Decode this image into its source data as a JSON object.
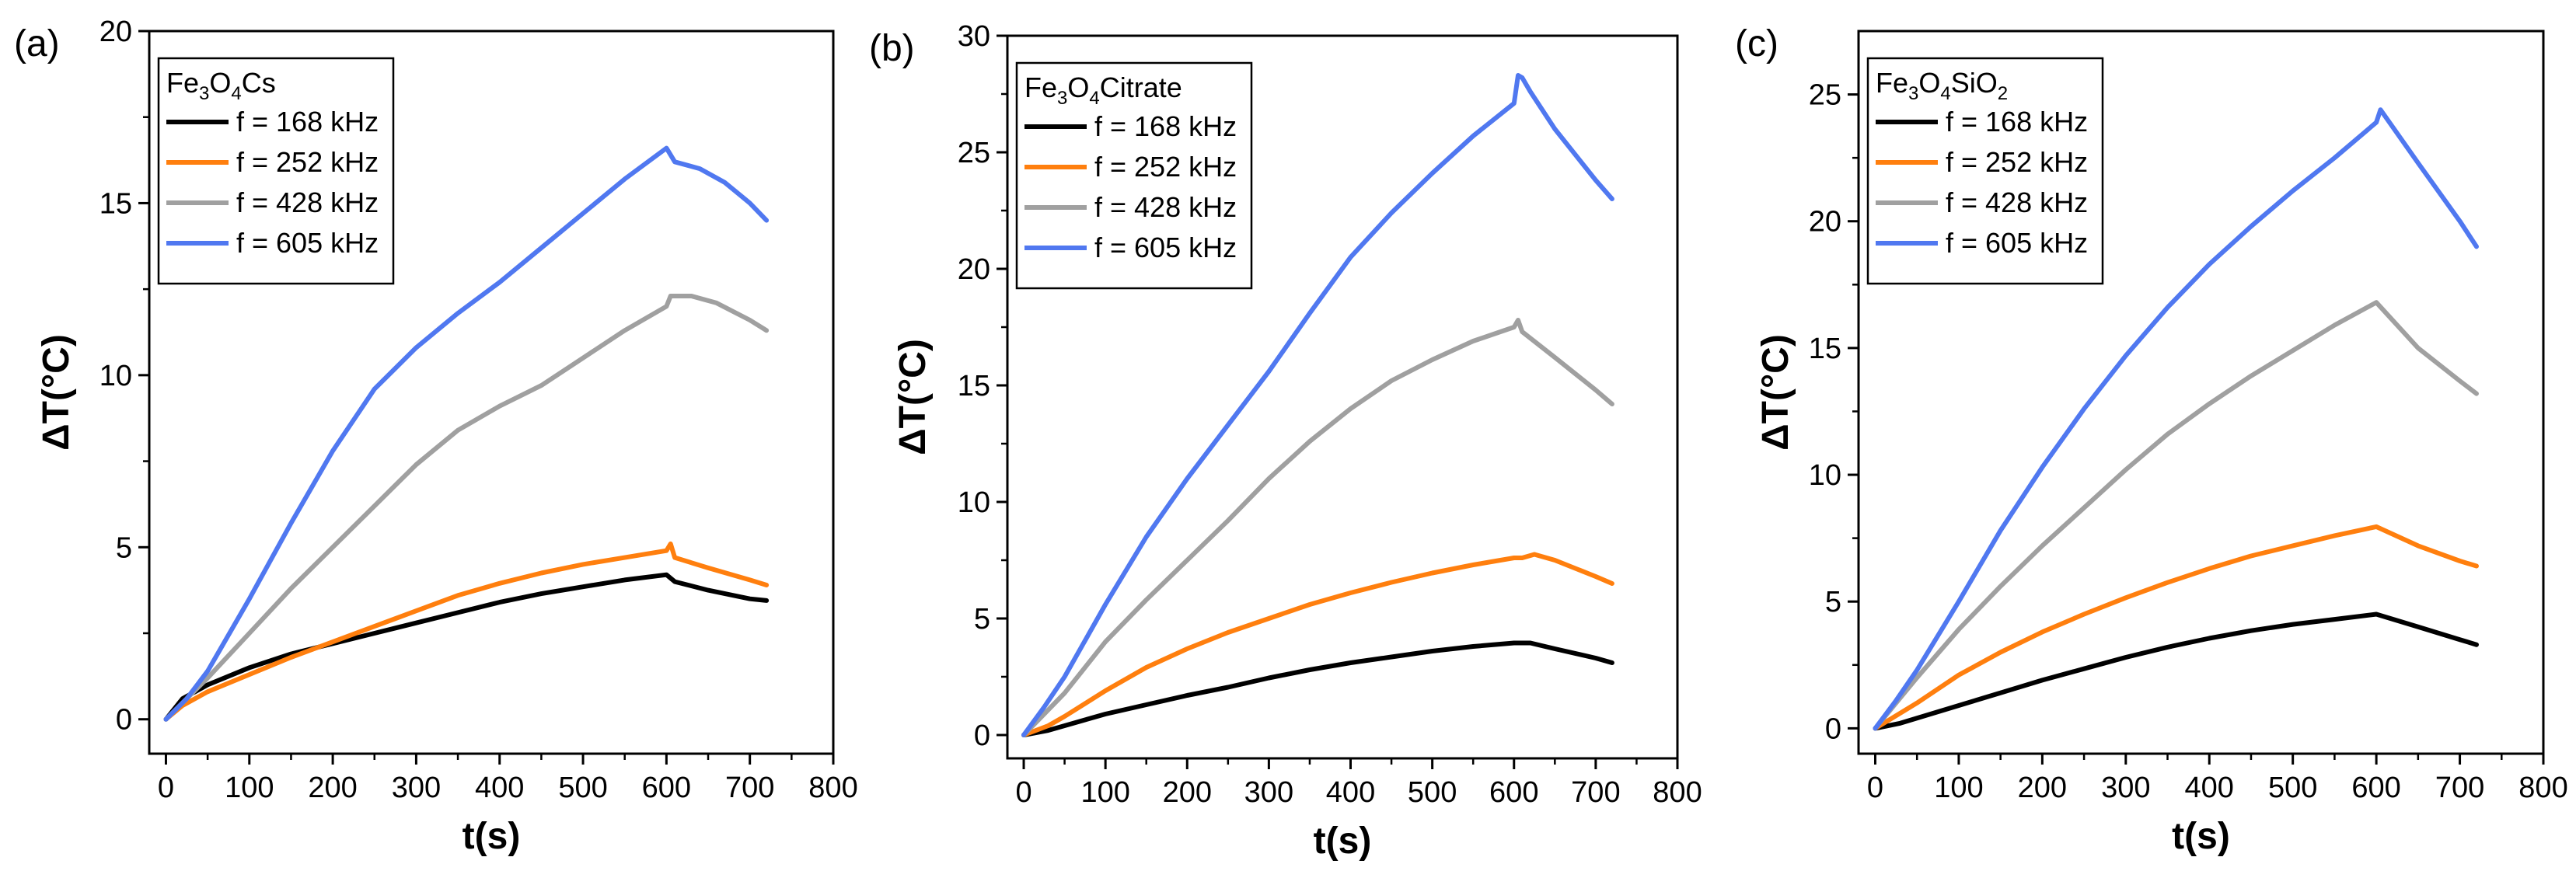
{
  "figure": {
    "legend_location": "upper-left",
    "colors": {
      "f168": "#000000",
      "f252": "#ff7f0e",
      "f428": "#a0a0a0",
      "f605": "#5078f0"
    },
    "panels": [
      {
        "label": "(a)",
        "legend_title": {
          "parts": [
            "Fe",
            "3",
            "O",
            "4",
            "Cs"
          ]
        }
      },
      {
        "label": "(b)",
        "legend_title": {
          "parts": [
            "Fe",
            "3",
            "O",
            "4",
            "Citrate"
          ]
        }
      },
      {
        "label": "(c)",
        "legend_title": {
          "parts": [
            "Fe",
            "3",
            "O",
            "4",
            "SiO",
            "2",
            ""
          ]
        }
      }
    ]
  },
  "chart_data": [
    {
      "type": "line",
      "panel": "(a)",
      "xlabel": "t(s)",
      "ylabel": "ΔT(°C)",
      "xlim": [
        -20,
        800
      ],
      "ylim": [
        -1,
        20
      ],
      "xticks": [
        0,
        100,
        200,
        300,
        400,
        500,
        600,
        700,
        800
      ],
      "xtick_labels": [
        "0",
        "100",
        "200",
        "300",
        "400",
        "500",
        "600",
        "700",
        "800"
      ],
      "yticks": [
        0,
        5,
        10,
        15,
        20
      ],
      "ytick_labels": [
        "0",
        "5",
        "10",
        "15",
        "20"
      ],
      "series": [
        {
          "name": "f = 168 kHz",
          "color": "#000000",
          "x": [
            0,
            20,
            50,
            100,
            150,
            200,
            250,
            300,
            350,
            400,
            450,
            500,
            550,
            600,
            610,
            650,
            700,
            720
          ],
          "y": [
            0,
            0.6,
            1.0,
            1.5,
            1.9,
            2.2,
            2.5,
            2.8,
            3.1,
            3.4,
            3.65,
            3.85,
            4.05,
            4.2,
            4.0,
            3.75,
            3.5,
            3.45
          ]
        },
        {
          "name": "f = 252 kHz",
          "color": "#ff7f0e",
          "x": [
            0,
            20,
            50,
            100,
            150,
            200,
            250,
            300,
            350,
            400,
            450,
            500,
            550,
            600,
            605,
            610,
            650,
            700,
            720
          ],
          "y": [
            0,
            0.4,
            0.8,
            1.3,
            1.8,
            2.25,
            2.7,
            3.15,
            3.6,
            3.95,
            4.25,
            4.5,
            4.7,
            4.9,
            5.1,
            4.7,
            4.4,
            4.05,
            3.9
          ]
        },
        {
          "name": "f = 428 kHz",
          "color": "#a0a0a0",
          "x": [
            0,
            25,
            50,
            100,
            150,
            200,
            250,
            300,
            350,
            400,
            450,
            500,
            550,
            600,
            605,
            630,
            660,
            700,
            720
          ],
          "y": [
            0,
            0.6,
            1.2,
            2.5,
            3.8,
            5.0,
            6.2,
            7.4,
            8.4,
            9.1,
            9.7,
            10.5,
            11.3,
            12.0,
            12.3,
            12.3,
            12.1,
            11.6,
            11.3
          ]
        },
        {
          "name": "f = 605 kHz",
          "color": "#5078f0",
          "x": [
            0,
            25,
            50,
            100,
            150,
            200,
            250,
            300,
            350,
            400,
            450,
            500,
            550,
            600,
            610,
            640,
            670,
            700,
            720
          ],
          "y": [
            0,
            0.6,
            1.4,
            3.5,
            5.7,
            7.8,
            9.6,
            10.8,
            11.8,
            12.7,
            13.7,
            14.7,
            15.7,
            16.6,
            16.2,
            16.0,
            15.6,
            15.0,
            14.5
          ]
        }
      ]
    },
    {
      "type": "line",
      "panel": "(b)",
      "xlabel": "t(s)",
      "ylabel": "ΔT(°C)",
      "xlim": [
        -20,
        800
      ],
      "ylim": [
        -1,
        30
      ],
      "xticks": [
        0,
        100,
        200,
        300,
        400,
        500,
        600,
        700,
        800
      ],
      "xtick_labels": [
        "0",
        "100",
        "200",
        "300",
        "400",
        "500",
        "600",
        "700",
        "800"
      ],
      "yticks": [
        0,
        5,
        10,
        15,
        20,
        25,
        30
      ],
      "ytick_labels": [
        "0",
        "5",
        "10",
        "15",
        "20",
        "25",
        "30"
      ],
      "series": [
        {
          "name": "f = 168 kHz",
          "color": "#000000",
          "x": [
            0,
            30,
            50,
            100,
            150,
            200,
            250,
            300,
            350,
            400,
            450,
            500,
            550,
            600,
            620,
            650,
            700,
            720
          ],
          "y": [
            0,
            0.2,
            0.4,
            0.9,
            1.3,
            1.7,
            2.05,
            2.45,
            2.8,
            3.1,
            3.35,
            3.6,
            3.8,
            3.95,
            3.95,
            3.7,
            3.3,
            3.1
          ]
        },
        {
          "name": "f = 252 kHz",
          "color": "#ff7f0e",
          "x": [
            0,
            30,
            50,
            100,
            150,
            200,
            250,
            300,
            350,
            400,
            450,
            500,
            550,
            600,
            610,
            625,
            650,
            700,
            720
          ],
          "y": [
            0,
            0.4,
            0.8,
            1.9,
            2.9,
            3.7,
            4.4,
            5.0,
            5.6,
            6.1,
            6.55,
            6.95,
            7.3,
            7.6,
            7.6,
            7.75,
            7.5,
            6.8,
            6.5
          ]
        },
        {
          "name": "f = 428 kHz",
          "color": "#a0a0a0",
          "x": [
            0,
            25,
            50,
            100,
            150,
            200,
            250,
            300,
            350,
            400,
            450,
            500,
            550,
            600,
            605,
            610,
            650,
            700,
            720
          ],
          "y": [
            0,
            0.9,
            1.8,
            4.0,
            5.8,
            7.5,
            9.2,
            11.0,
            12.6,
            14.0,
            15.2,
            16.1,
            16.9,
            17.5,
            17.8,
            17.3,
            16.2,
            14.8,
            14.2
          ]
        },
        {
          "name": "f = 605 kHz",
          "color": "#5078f0",
          "x": [
            0,
            25,
            50,
            100,
            150,
            200,
            250,
            300,
            350,
            400,
            450,
            500,
            550,
            600,
            605,
            610,
            620,
            650,
            700,
            720
          ],
          "y": [
            0,
            1.2,
            2.5,
            5.6,
            8.5,
            11.0,
            13.3,
            15.6,
            18.1,
            20.5,
            22.4,
            24.1,
            25.7,
            27.1,
            28.3,
            28.2,
            27.6,
            26.0,
            23.8,
            23.0
          ]
        }
      ]
    },
    {
      "type": "line",
      "panel": "(c)",
      "xlabel": "t(s)",
      "ylabel": "ΔT(°C)",
      "xlim": [
        -20,
        800
      ],
      "ylim": [
        -1,
        27.5
      ],
      "xticks": [
        0,
        100,
        200,
        300,
        400,
        500,
        600,
        700,
        800
      ],
      "xtick_labels": [
        "0",
        "100",
        "200",
        "300",
        "400",
        "500",
        "600",
        "700",
        "800"
      ],
      "yticks": [
        0,
        5,
        10,
        15,
        20,
        25
      ],
      "ytick_labels": [
        "0",
        "5",
        "10",
        "15",
        "20",
        "25"
      ],
      "series": [
        {
          "name": "f = 168 kHz",
          "color": "#000000",
          "x": [
            0,
            30,
            50,
            100,
            150,
            200,
            250,
            300,
            350,
            400,
            450,
            500,
            550,
            600,
            650,
            700,
            720
          ],
          "y": [
            0,
            0.2,
            0.4,
            0.9,
            1.4,
            1.9,
            2.35,
            2.8,
            3.2,
            3.55,
            3.85,
            4.1,
            4.3,
            4.5,
            4.0,
            3.5,
            3.3
          ]
        },
        {
          "name": "f = 252 kHz",
          "color": "#ff7f0e",
          "x": [
            0,
            30,
            50,
            100,
            150,
            200,
            250,
            300,
            350,
            400,
            450,
            500,
            550,
            600,
            650,
            700,
            720
          ],
          "y": [
            0,
            0.6,
            1.0,
            2.1,
            3.0,
            3.8,
            4.5,
            5.15,
            5.75,
            6.3,
            6.8,
            7.2,
            7.6,
            7.95,
            7.2,
            6.6,
            6.4
          ]
        },
        {
          "name": "f = 428 kHz",
          "color": "#a0a0a0",
          "x": [
            0,
            25,
            50,
            100,
            150,
            200,
            250,
            300,
            350,
            400,
            450,
            500,
            550,
            600,
            650,
            700,
            720
          ],
          "y": [
            0,
            1.0,
            2.0,
            3.9,
            5.6,
            7.2,
            8.7,
            10.2,
            11.6,
            12.8,
            13.9,
            14.9,
            15.9,
            16.8,
            15.0,
            13.7,
            13.2
          ]
        },
        {
          "name": "f = 605 kHz",
          "color": "#5078f0",
          "x": [
            0,
            25,
            50,
            100,
            150,
            200,
            250,
            300,
            350,
            400,
            450,
            500,
            550,
            600,
            605,
            650,
            700,
            720
          ],
          "y": [
            0,
            1.1,
            2.3,
            5.0,
            7.8,
            10.3,
            12.6,
            14.7,
            16.6,
            18.3,
            19.8,
            21.2,
            22.5,
            23.9,
            24.4,
            22.3,
            20.0,
            19.0
          ]
        }
      ]
    }
  ]
}
